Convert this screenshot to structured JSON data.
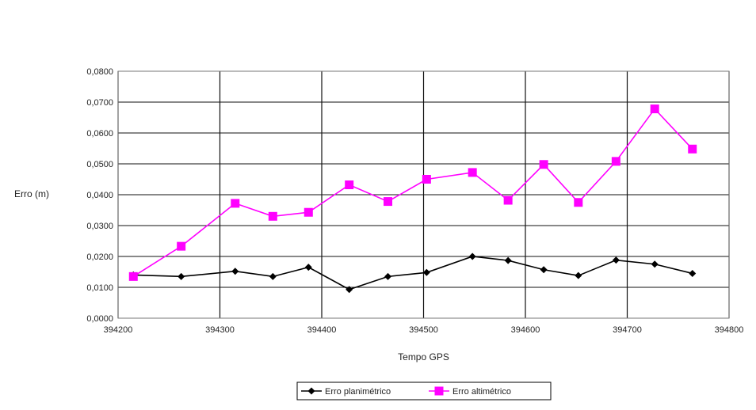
{
  "chart_data": {
    "type": "line",
    "title": "",
    "xlabel": "Tempo GPS",
    "ylabel": "Erro (m)",
    "xlim": [
      394200,
      394800
    ],
    "ylim": [
      0,
      0.08
    ],
    "xticks": [
      394200,
      394300,
      394400,
      394500,
      394600,
      394700,
      394800
    ],
    "yticks": [
      0,
      0.01,
      0.02,
      0.03,
      0.04,
      0.05,
      0.06,
      0.07,
      0.08
    ],
    "xtick_labels": [
      "394200",
      "394300",
      "394400",
      "394500",
      "394600",
      "394700",
      "394800"
    ],
    "ytick_labels": [
      "0,0000",
      "0,0100",
      "0,0200",
      "0,0300",
      "0,0400",
      "0,0500",
      "0,0600",
      "0,0700",
      "0,0800"
    ],
    "grid": true,
    "legend_position": "bottom-center",
    "series": [
      {
        "name": "Erro planimétrico",
        "color": "#000000",
        "marker": "diamond",
        "x": [
          394215,
          394262,
          394315,
          394352,
          394387,
          394427,
          394465,
          394503,
          394548,
          394583,
          394618,
          394652,
          394689,
          394727,
          394764
        ],
        "y": [
          0.014,
          0.0135,
          0.0152,
          0.0135,
          0.0165,
          0.0093,
          0.0135,
          0.0148,
          0.02,
          0.0187,
          0.0157,
          0.0138,
          0.0188,
          0.0175,
          0.0145
        ]
      },
      {
        "name": "Erro altimétrico",
        "color": "#ff00ff",
        "marker": "square",
        "x": [
          394215,
          394262,
          394315,
          394352,
          394387,
          394427,
          394465,
          394503,
          394548,
          394583,
          394618,
          394652,
          394689,
          394727,
          394764
        ],
        "y": [
          0.0135,
          0.0233,
          0.0372,
          0.033,
          0.0343,
          0.0432,
          0.0378,
          0.045,
          0.0472,
          0.0382,
          0.0498,
          0.0375,
          0.0508,
          0.0678,
          0.0548
        ]
      }
    ]
  }
}
